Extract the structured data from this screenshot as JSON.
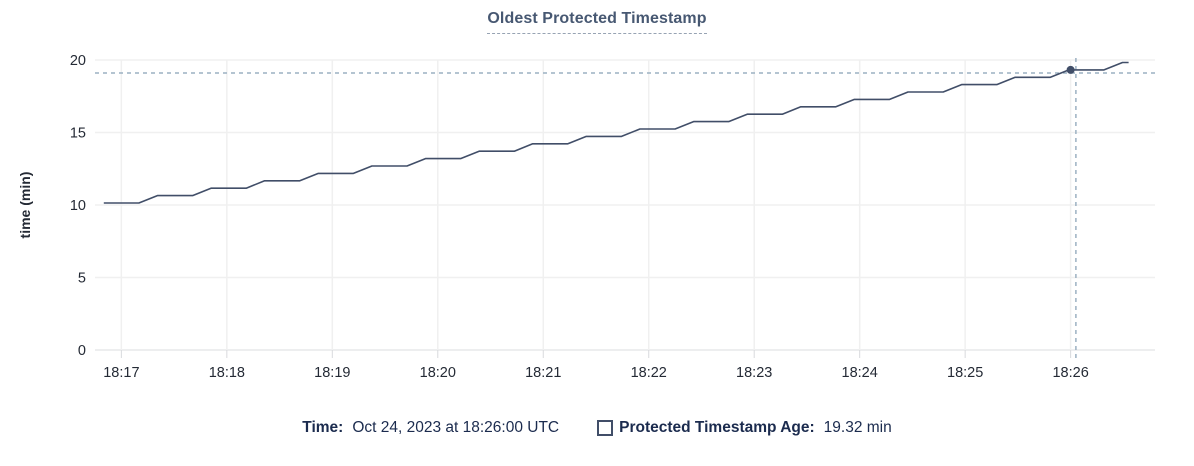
{
  "title": {
    "text": "Oldest Protected Timestamp"
  },
  "legend": {
    "time_label": "Time:",
    "time_value": "Oct 24, 2023 at 18:26:00 UTC",
    "series_label": "Protected Timestamp Age:",
    "series_value": "19.32 min",
    "swatch_icon": "open-square"
  },
  "colors": {
    "series": "#414e68",
    "title": "#475872",
    "crosshair": "#9cb1c2",
    "gridline": "#f0f0f0",
    "axis_line": "#e7e8ea",
    "tick": "#d8dadd",
    "tick_label": "#242a35",
    "legend_text": "#1b2b4e"
  },
  "chart_data": {
    "type": "line",
    "title": "Oldest Protected Timestamp",
    "xlabel": "",
    "ylabel": "time (min)",
    "ylim": [
      0,
      20
    ],
    "y_ticks": [
      0,
      5,
      10,
      15,
      20
    ],
    "x_base_time": "18:16:00",
    "x_domain_sec": [
      45,
      648
    ],
    "x_ticks": [
      {
        "sec": 60,
        "label": "18:17"
      },
      {
        "sec": 120,
        "label": "18:18"
      },
      {
        "sec": 180,
        "label": "18:19"
      },
      {
        "sec": 240,
        "label": "18:20"
      },
      {
        "sec": 300,
        "label": "18:21"
      },
      {
        "sec": 360,
        "label": "18:22"
      },
      {
        "sec": 420,
        "label": "18:23"
      },
      {
        "sec": 480,
        "label": "18:24"
      },
      {
        "sec": 540,
        "label": "18:25"
      },
      {
        "sec": 600,
        "label": "18:26"
      }
    ],
    "grid": true,
    "legend_position": "bottom",
    "series": [
      {
        "name": "Protected Timestamp Age",
        "unit": "min",
        "points": [
          [
            50,
            10.14
          ],
          [
            70,
            10.14
          ],
          [
            80.5,
            10.65
          ],
          [
            100.5,
            10.65
          ],
          [
            111,
            11.16
          ],
          [
            131,
            11.16
          ],
          [
            141.5,
            11.67
          ],
          [
            161.5,
            11.67
          ],
          [
            172,
            12.18
          ],
          [
            192,
            12.18
          ],
          [
            202.5,
            12.69
          ],
          [
            222.5,
            12.69
          ],
          [
            233,
            13.2
          ],
          [
            253,
            13.2
          ],
          [
            263.5,
            13.71
          ],
          [
            283.5,
            13.71
          ],
          [
            294,
            14.22
          ],
          [
            314,
            14.22
          ],
          [
            324.5,
            14.73
          ],
          [
            344.5,
            14.73
          ],
          [
            355,
            15.24
          ],
          [
            375,
            15.24
          ],
          [
            385.5,
            15.75
          ],
          [
            405.5,
            15.75
          ],
          [
            416,
            16.26
          ],
          [
            436,
            16.26
          ],
          [
            446.5,
            16.77
          ],
          [
            466.5,
            16.77
          ],
          [
            477,
            17.28
          ],
          [
            497,
            17.28
          ],
          [
            507.5,
            17.79
          ],
          [
            527.5,
            17.79
          ],
          [
            538,
            18.3
          ],
          [
            558,
            18.3
          ],
          [
            568.5,
            18.81
          ],
          [
            588.5,
            18.81
          ],
          [
            599,
            19.32
          ],
          [
            619,
            19.32
          ],
          [
            629.5,
            19.83
          ],
          [
            633,
            19.83
          ]
        ]
      }
    ],
    "hover": {
      "point_sec": 600,
      "point_value": 19.32,
      "cursor_sec": 603,
      "cursor_value": 19.1,
      "time_label": "Oct 24, 2023 at 18:26:00 UTC",
      "value_label": "19.32 min"
    }
  }
}
